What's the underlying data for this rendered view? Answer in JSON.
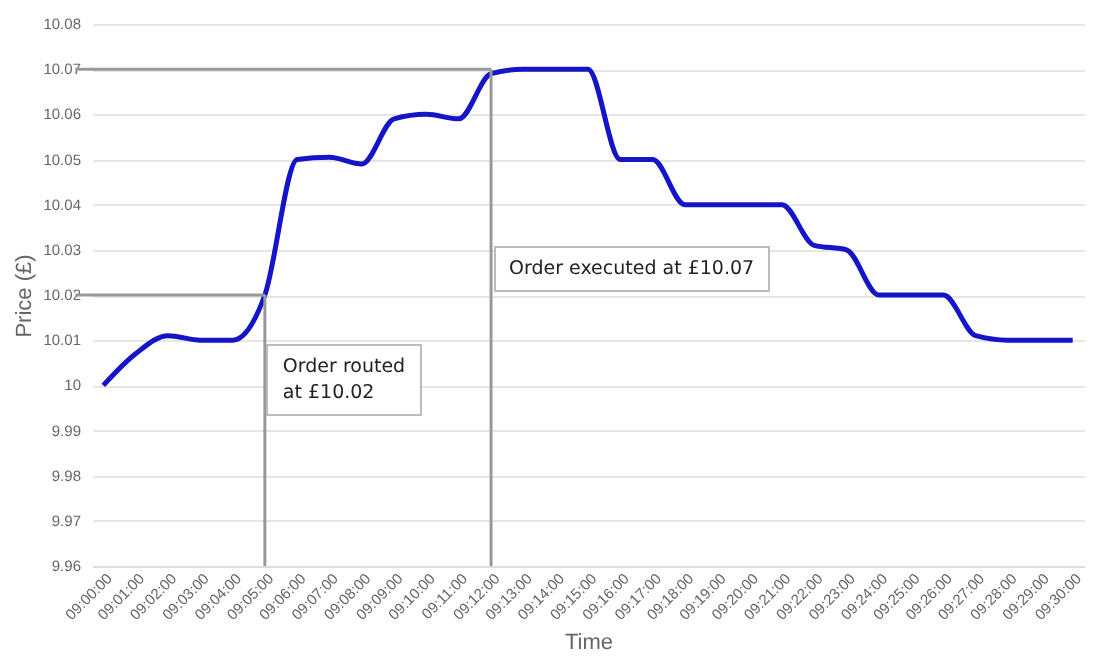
{
  "chart_data": {
    "type": "line",
    "xlabel": "Time",
    "ylabel": "Price (£)",
    "categories": [
      "09:00:00",
      "09:01:00",
      "09:02:00",
      "09:03:00",
      "09:04:00",
      "09:05:00",
      "09:06:00",
      "09:07:00",
      "09:08:00",
      "09:09:00",
      "09:10:00",
      "09:11:00",
      "09:12:00",
      "09:13:00",
      "09:14:00",
      "09:15:00",
      "09:16:00",
      "09:17:00",
      "09:18:00",
      "09:19:00",
      "09:20:00",
      "09:21:00",
      "09:22:00",
      "09:23:00",
      "09:24:00",
      "09:25:00",
      "09:26:00",
      "09:27:00",
      "09:28:00",
      "09:29:00",
      "09:30:00"
    ],
    "series": [
      {
        "color": "#1414c8",
        "values": [
          10.0,
          10.007,
          10.011,
          10.01,
          10.01,
          10.02,
          10.05,
          10.0505,
          10.049,
          10.059,
          10.06,
          10.059,
          10.069,
          10.07,
          10.07,
          10.07,
          10.05,
          10.05,
          10.04,
          10.04,
          10.04,
          10.04,
          10.031,
          10.03,
          10.02,
          10.02,
          10.02,
          10.011,
          10.01,
          10.01,
          10.01
        ]
      }
    ],
    "ylim": [
      9.96,
      10.08
    ],
    "yticks": [
      9.96,
      9.97,
      9.98,
      9.99,
      {
        "value": 10,
        "label": "10"
      },
      10.01,
      10.02,
      10.03,
      10.04,
      10.05,
      10.06,
      10.07,
      10.08
    ],
    "grid": "y",
    "ref_lines": [
      {
        "axis": "y",
        "value": 10.02
      },
      {
        "axis": "x",
        "value": "09:05:00",
        "label": "Order routed at £10.02"
      },
      {
        "axis": "y",
        "value": 10.07
      },
      {
        "axis": "x",
        "value": "09:12:00",
        "label": "Order executed at £10.07"
      }
    ]
  }
}
